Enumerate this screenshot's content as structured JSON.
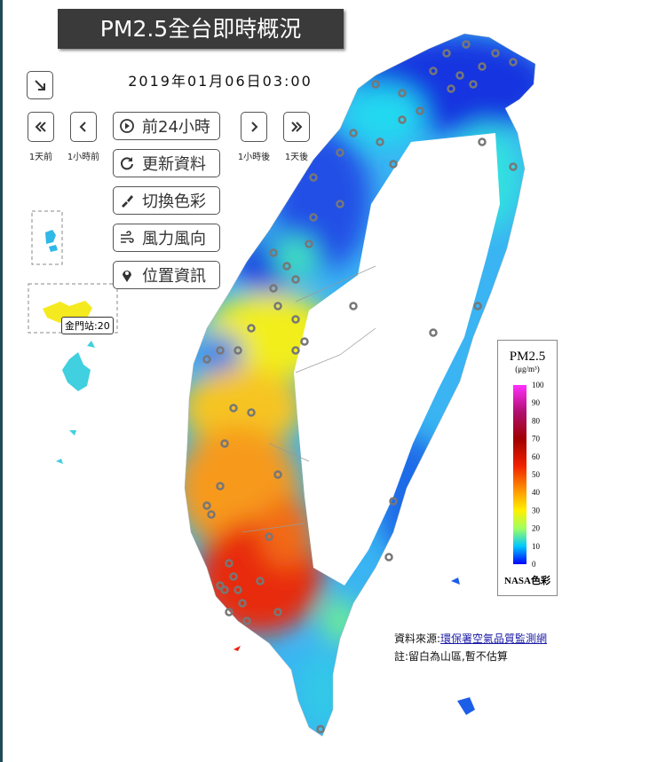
{
  "header": {
    "title": "PM2.5全台即時概況",
    "timestamp": "2019年01月06日03:00"
  },
  "controls": {
    "nav": [
      {
        "caption": "1天前"
      },
      {
        "caption": "1小時前"
      },
      {
        "caption": "1小時後"
      },
      {
        "caption": "1天後"
      }
    ],
    "actions": [
      "前24小時",
      "更新資料",
      "切換色彩",
      "風力風向",
      "位置資訊"
    ]
  },
  "map": {
    "station_label": "金門站:20"
  },
  "legend": {
    "title": "PM2.5",
    "unit": "(μg/m³)",
    "ticks": [
      0,
      10,
      20,
      30,
      40,
      50,
      60,
      70,
      80,
      90,
      100
    ],
    "palette": "NASA色彩"
  },
  "footer": {
    "source_prefix": "資料來源:",
    "source_link": "環保署空氣品質監測網",
    "note": "註:留白為山區,暫不估算"
  }
}
